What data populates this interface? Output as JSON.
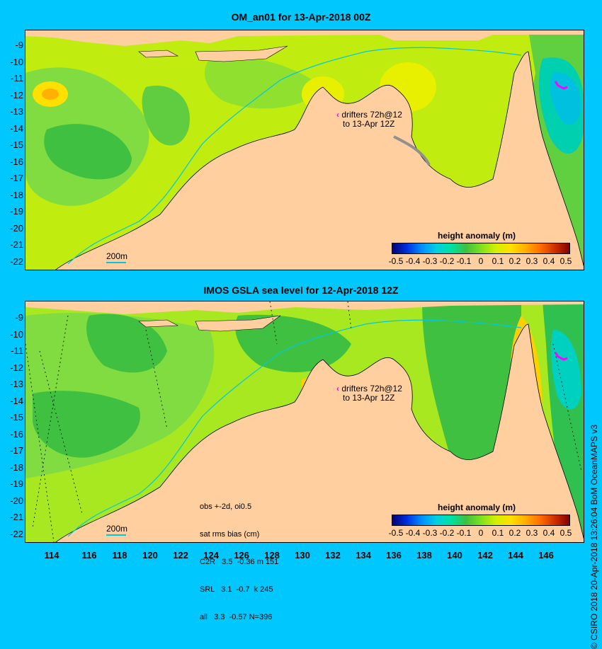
{
  "top_panel": {
    "title": "OM_an01 for 13-Apr-2018 00Z",
    "lat_labels": [
      "-9",
      "-10",
      "-11",
      "-12",
      "-13",
      "-14",
      "-15",
      "-16",
      "-17",
      "-18",
      "-19",
      "-20",
      "-21",
      "-22"
    ],
    "drifter_label": [
      "drifters 72h@12",
      "to 13-Apr 12Z"
    ],
    "contour_label": "200m",
    "legend_title": "height anomaly (m)",
    "legend_ticks": [
      "-0.5",
      "-0.4",
      "-0.3",
      "-0.2",
      "-0.1",
      "0",
      "0.1",
      "0.2",
      "0.3",
      "0.4",
      "0.5"
    ]
  },
  "bottom_panel": {
    "title": "IMOS GSLA sea level  for 12-Apr-2018 12Z",
    "lat_labels": [
      "-9",
      "-10",
      "-11",
      "-12",
      "-13",
      "-14",
      "-15",
      "-16",
      "-17",
      "-18",
      "-19",
      "-20",
      "-21",
      "-22"
    ],
    "drifter_label": [
      "drifters 72h@12",
      "to 13-Apr 12Z"
    ],
    "contour_label": "200m",
    "legend_title": "height anomaly (m)",
    "legend_ticks": [
      "-0.5",
      "-0.4",
      "-0.3",
      "-0.2",
      "-0.1",
      "0",
      "0.1",
      "0.2",
      "0.3",
      "0.4",
      "0.5"
    ],
    "stats": [
      "obs +-2d, oi0.5",
      "sat rms bias (cm)",
      "C2R   3.5  -0.36 m 151",
      "SRL   3.1  -0.7  k 245",
      "all   3.3  -0.57 N=396"
    ]
  },
  "lon_labels": [
    "114",
    "116",
    "118",
    "120",
    "122",
    "124",
    "126",
    "128",
    "130",
    "132",
    "134",
    "136",
    "138",
    "140",
    "142",
    "144",
    "146"
  ],
  "credit": "© CSIRO 2018   20-Apr-2018 13:26:04 BoM OceanMAPS v3",
  "colors": {
    "background": "#00c8ff",
    "land": "#ffcf9f",
    "ocean_green": "#7fe040",
    "ocean_lime": "#c8f000",
    "drifter": "#ff00ff",
    "contour": "#00c8e0"
  }
}
